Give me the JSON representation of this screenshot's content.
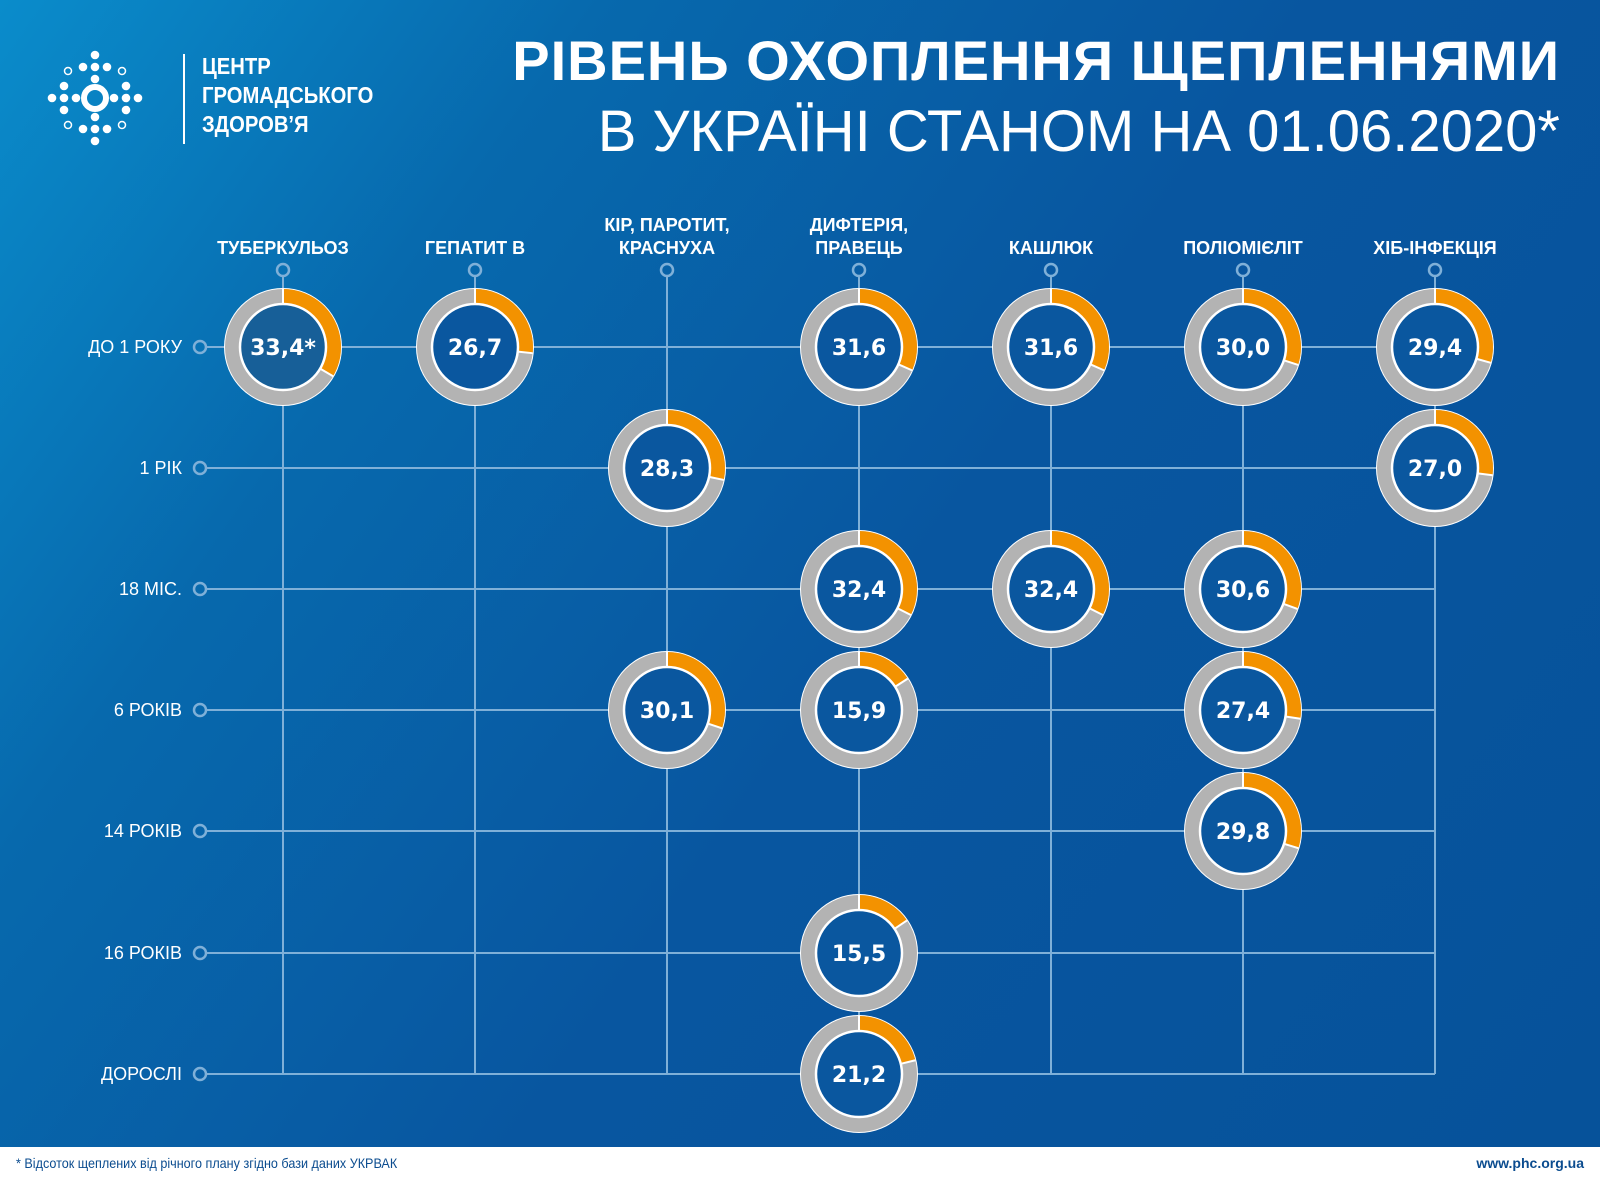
{
  "logo": {
    "lines": [
      "ЦЕНТР",
      "ГРОМАДСЬКОГО",
      "ЗДОРОВ’Я"
    ]
  },
  "title": {
    "line1": "РІВЕНЬ ОХОПЛЕННЯ ЩЕПЛЕННЯМИ",
    "line2": "В УКРАЇНІ СТАНОМ НА 01.06.2020*"
  },
  "footer": {
    "note": "* Відсоток щеплених від річного плану згідно бази даних УКРВАК",
    "url": "www.phc.org.ua"
  },
  "colors": {
    "filled": "#f39200",
    "remaining": "#b3b3b3",
    "background": "#0758a0"
  },
  "chart_data": {
    "type": "donut-matrix",
    "unit": "%",
    "columns": [
      [
        "ТУБЕРКУЛЬОЗ"
      ],
      [
        "ГЕПАТИТ В"
      ],
      [
        "КІР, ПАРОТИТ,",
        "КРАСНУХА"
      ],
      [
        "ДИФТЕРІЯ,",
        "ПРАВЕЦЬ"
      ],
      [
        "КАШЛЮК"
      ],
      [
        "ПОЛІОМІЄЛІТ"
      ],
      [
        "ХІБ-ІНФЕКЦІЯ"
      ]
    ],
    "rows": [
      "ДО 1 РОКУ",
      "1 РІК",
      "18 МІС.",
      "6 РОКІВ",
      "14 РОКІВ",
      "16 РОКІВ",
      "ДОРОСЛІ"
    ],
    "values": [
      {
        "col": 0,
        "row": 0,
        "value": 33.4,
        "label": "33,4*"
      },
      {
        "col": 1,
        "row": 0,
        "value": 26.7,
        "label": "26,7"
      },
      {
        "col": 2,
        "row": 1,
        "value": 28.3,
        "label": "28,3"
      },
      {
        "col": 2,
        "row": 3,
        "value": 30.1,
        "label": "30,1"
      },
      {
        "col": 3,
        "row": 0,
        "value": 31.6,
        "label": "31,6"
      },
      {
        "col": 3,
        "row": 2,
        "value": 32.4,
        "label": "32,4"
      },
      {
        "col": 3,
        "row": 3,
        "value": 15.9,
        "label": "15,9"
      },
      {
        "col": 3,
        "row": 5,
        "value": 15.5,
        "label": "15,5"
      },
      {
        "col": 3,
        "row": 6,
        "value": 21.2,
        "label": "21,2"
      },
      {
        "col": 4,
        "row": 0,
        "value": 31.6,
        "label": "31,6"
      },
      {
        "col": 4,
        "row": 2,
        "value": 32.4,
        "label": "32,4"
      },
      {
        "col": 5,
        "row": 0,
        "value": 30.0,
        "label": "30,0"
      },
      {
        "col": 5,
        "row": 2,
        "value": 30.6,
        "label": "30,6"
      },
      {
        "col": 5,
        "row": 3,
        "value": 27.4,
        "label": "27,4"
      },
      {
        "col": 5,
        "row": 4,
        "value": 29.8,
        "label": "29,8"
      },
      {
        "col": 6,
        "row": 0,
        "value": 29.4,
        "label": "29,4"
      },
      {
        "col": 6,
        "row": 1,
        "value": 27.0,
        "label": "27,0"
      }
    ]
  }
}
